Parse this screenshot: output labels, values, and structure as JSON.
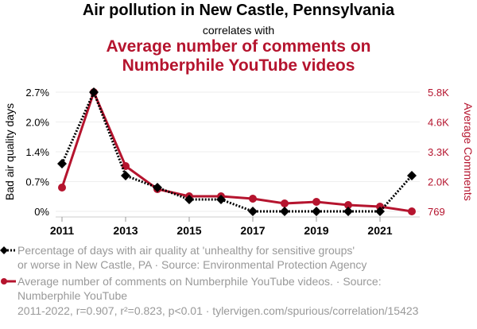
{
  "header": {
    "title": "Air pollution in New Castle, Pennsylvania",
    "subtitle": "correlates with",
    "title2_line1": "Average number of comments on",
    "title2_line2": "Numberphile YouTube videos"
  },
  "legend": {
    "series1": [
      "Percentage of days with air quality at 'unhealthy for sensitive groups'",
      "or worse in New Castle, PA · Source: Environmental Protection Agency"
    ],
    "series2": [
      "Average number of comments on Numberphile YouTube videos. · Source:",
      "Numberphile YouTube"
    ]
  },
  "footer": "2011-2022, r=0.907, r²=0.823, p<0.01 · tylervigen.com/spurious/correlation/15423",
  "colors": {
    "series1": "#000000",
    "series2": "#b5142e",
    "grid": "#eeeeee",
    "legend_text": "#999999"
  },
  "chart_data": {
    "type": "line",
    "x": [
      2011,
      2012,
      2013,
      2014,
      2015,
      2016,
      2017,
      2018,
      2019,
      2020,
      2021,
      2022
    ],
    "xticks": [
      "2011",
      "2013",
      "2015",
      "2017",
      "2019",
      "2021"
    ],
    "xtick_values": [
      2011,
      2013,
      2015,
      2017,
      2019,
      2021
    ],
    "grid": true,
    "series": [
      {
        "name": "Bad air quality days",
        "axis": "left",
        "marker": "diamond",
        "line": "dotted",
        "values": [
          1.08,
          2.7,
          0.81,
          0.54,
          0.27,
          0.27,
          0,
          0,
          0,
          0,
          0,
          0.81
        ]
      },
      {
        "name": "Average Comments",
        "axis": "right",
        "marker": "circle",
        "line": "solid",
        "values": [
          1775,
          5800,
          2681,
          1708,
          1406,
          1406,
          1306,
          1104,
          1171,
          1037,
          970,
          769
        ]
      }
    ],
    "ylabel_left": "Bad air quality days",
    "ylabel_right": "Average Comments",
    "yticks_left": [
      "0%",
      "0.7%",
      "1.4%",
      "2.0%",
      "2.7%"
    ],
    "yticks_right": [
      "769",
      "2.0K",
      "3.3K",
      "4.6K",
      "5.8K"
    ],
    "ylim_left": [
      0,
      2.7
    ],
    "ylim_right": [
      769,
      5800
    ]
  }
}
